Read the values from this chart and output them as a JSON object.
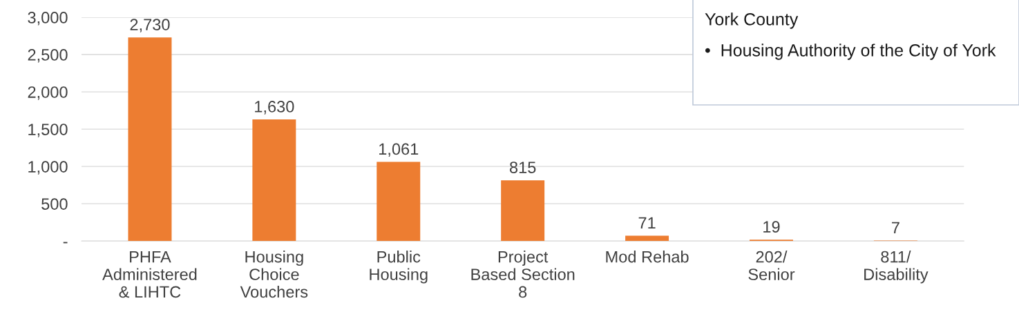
{
  "chart_data": {
    "type": "bar",
    "categories": [
      "PHFA\nAdministered\n& LIHTC",
      "Housing\nChoice\nVouchers",
      "Public\nHousing",
      "Project\nBased Section\n8",
      "Mod Rehab",
      "202/\nSenior",
      "811/\nDisability"
    ],
    "values": [
      2730,
      1630,
      1061,
      815,
      71,
      19,
      7
    ],
    "color": "#ed7d31",
    "ylim": [
      0,
      3000
    ],
    "yticks": [
      {
        "value": 0,
        "label": "-"
      },
      {
        "value": 500,
        "label": "500"
      },
      {
        "value": 1000,
        "label": "1,000"
      },
      {
        "value": 1500,
        "label": "1,500"
      },
      {
        "value": 2000,
        "label": "2,000"
      },
      {
        "value": 2500,
        "label": "2,500"
      },
      {
        "value": 3000,
        "label": "3,000"
      }
    ],
    "value_labels": [
      "2,730",
      "1,630",
      "1,061",
      "815",
      "71",
      "19",
      "7"
    ],
    "grid": "y",
    "annotations": [
      "York County",
      "•  Housing Authority of the City of York"
    ]
  }
}
